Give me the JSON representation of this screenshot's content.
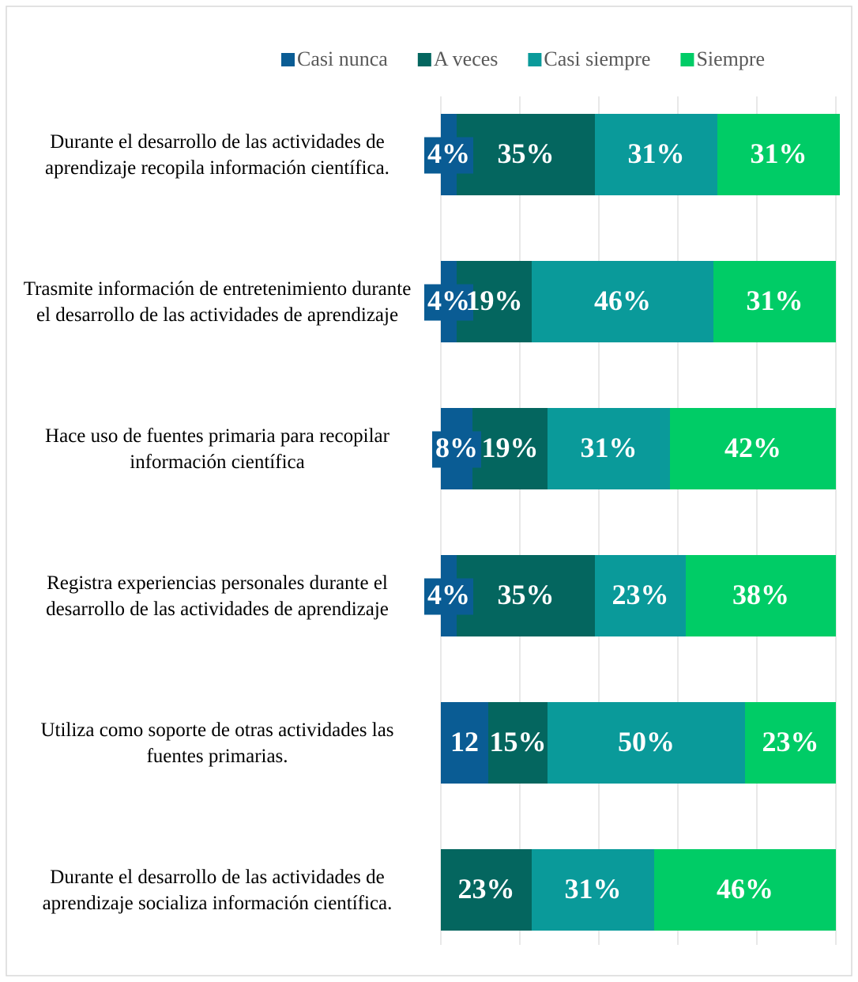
{
  "chart_data": {
    "type": "stacked-bar-horizontal",
    "categories": [
      "Durante el desarrollo de las actividades de aprendizaje recopila información científica.",
      "Trasmite información de entretenimiento durante el desarrollo de las actividades de aprendizaje",
      "Hace uso de fuentes primaria para recopilar información científica",
      "Registra experiencias personales durante el desarrollo de las actividades de aprendizaje",
      "Utiliza como soporte de otras actividades las fuentes primarias.",
      "Durante el desarrollo de las actividades de aprendizaje socializa información científica."
    ],
    "series": [
      {
        "name": "Casi nunca",
        "color": "#0a5c94",
        "values": [
          4,
          4,
          8,
          4,
          12,
          0
        ],
        "value_labels": [
          "4%",
          "4%",
          "8%",
          "4%",
          "12",
          null
        ]
      },
      {
        "name": "A veces",
        "color": "#04665f",
        "values": [
          35,
          19,
          19,
          35,
          15,
          23
        ],
        "value_labels": [
          "35%",
          "19%",
          "19%",
          "35%",
          "15%",
          "23%"
        ]
      },
      {
        "name": "Casi siempre",
        "color": "#0a9a9a",
        "values": [
          31,
          46,
          31,
          23,
          50,
          31
        ],
        "value_labels": [
          "31%",
          "46%",
          "31%",
          "23%",
          "50%",
          "31%"
        ]
      },
      {
        "name": "Siempre",
        "color": "#00cc66",
        "values": [
          31,
          31,
          42,
          38,
          23,
          46
        ],
        "value_labels": [
          "31%",
          "31%",
          "42%",
          "38%",
          "23%",
          "46%"
        ]
      }
    ],
    "xlim": [
      0,
      100
    ],
    "xticks": [
      0,
      20,
      40,
      60,
      80,
      100
    ],
    "grid": true,
    "legend": "top"
  }
}
